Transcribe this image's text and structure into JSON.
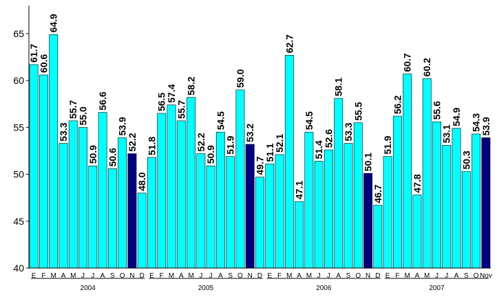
{
  "chart_data": {
    "type": "bar",
    "title": "",
    "xlabel": "",
    "ylabel": "",
    "ylim": [
      40,
      68
    ],
    "yticks": [
      40,
      45,
      50,
      55,
      60,
      65
    ],
    "grid": false,
    "legend": "none",
    "colors": {
      "bar": "#00ffff",
      "highlight": "#000080"
    },
    "categories": [
      "E",
      "F",
      "M",
      "A",
      "M",
      "J",
      "J",
      "A",
      "S",
      "O",
      "N",
      "D",
      "E",
      "F",
      "M",
      "A",
      "M",
      "J",
      "J",
      "A",
      "S",
      "O",
      "N",
      "D",
      "E",
      "F",
      "M",
      "A",
      "M",
      "J",
      "J",
      "A",
      "S",
      "O",
      "N",
      "D",
      "E",
      "F",
      "M",
      "A",
      "M",
      "J",
      "J",
      "A",
      "S",
      "O",
      "Nov"
    ],
    "values": [
      61.7,
      60.6,
      64.9,
      53.3,
      55.7,
      55.0,
      50.9,
      56.6,
      50.6,
      53.9,
      52.2,
      48.0,
      51.8,
      56.5,
      57.4,
      55.7,
      58.2,
      52.2,
      50.9,
      54.5,
      51.9,
      59.0,
      53.2,
      49.7,
      51.1,
      52.1,
      62.7,
      47.1,
      54.5,
      51.4,
      52.6,
      58.1,
      53.3,
      55.5,
      50.1,
      46.7,
      51.9,
      56.2,
      60.7,
      47.8,
      60.2,
      55.6,
      53.1,
      54.9,
      50.3,
      54.3,
      53.9
    ],
    "value_labels": [
      "61.7",
      "60.6",
      "64.9",
      "53.3",
      "55.7",
      "55.0",
      "50.9",
      "56.6",
      "50.6",
      "53.9",
      "52.2",
      "48.0",
      "51.8",
      "56.5",
      "57.4",
      "55.7",
      "58.2",
      "52.2",
      "50.9",
      "54.5",
      "51.9",
      "59.0",
      "53.2",
      "49.7",
      "51.1",
      "52.1",
      "62.7",
      "47.1",
      "54.5",
      "51.4",
      "52.6",
      "58.1",
      "53.3",
      "55.5",
      "50.1",
      "46.7",
      "51.9",
      "56.2",
      "60.7",
      "47.8",
      "60.2",
      "55.6",
      "53.1",
      "54.9",
      "50.3",
      "54.3",
      "53.9"
    ],
    "highlight": [
      10,
      22,
      34,
      46
    ],
    "years": [
      {
        "label": "2004",
        "start": 0,
        "end": 11
      },
      {
        "label": "2005",
        "start": 12,
        "end": 23
      },
      {
        "label": "2006",
        "start": 24,
        "end": 35
      },
      {
        "label": "2007",
        "start": 36,
        "end": 46
      }
    ]
  }
}
